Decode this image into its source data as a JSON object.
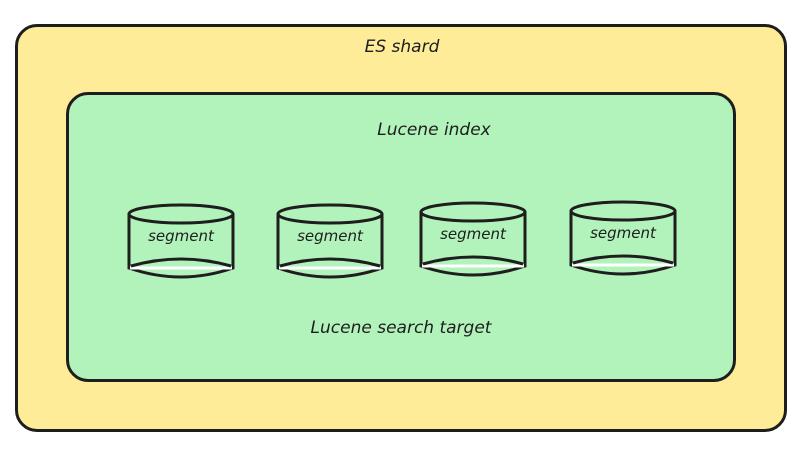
{
  "diagram": {
    "shard_label": "ES shard",
    "lucene_label": "Lucene index",
    "target_label": "Lucene search target",
    "segments": [
      {
        "label": "segment"
      },
      {
        "label": "segment"
      },
      {
        "label": "segment"
      },
      {
        "label": "segment"
      }
    ],
    "colors": {
      "shard_fill": "#ffec99",
      "lucene_fill": "#b2f2bb",
      "stroke": "#1e1e1e"
    }
  }
}
